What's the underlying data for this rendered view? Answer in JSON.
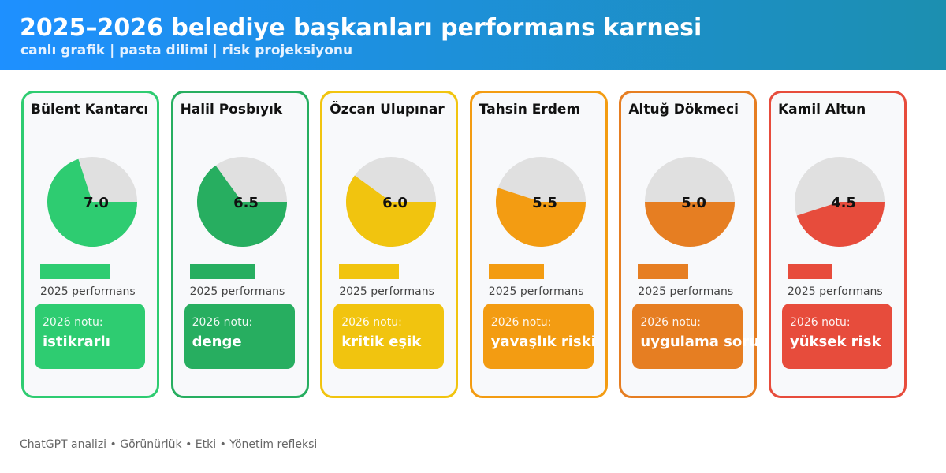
{
  "header": {
    "title": "2025–2026 belediye başkanları performans karnesi",
    "subtitle": "canlı grafik | pasta dilimi | risk projeksiyonu"
  },
  "chart_data": {
    "type": "pie",
    "scale_max": 10,
    "remainder_color": "#e0e0e0",
    "bar_label": "2025 performans",
    "note_label": "2026 notu:",
    "items": [
      {
        "name": "Bülent Kantarcı",
        "value": 7.0,
        "value_label": "7.0",
        "note": "istikrarlı",
        "color": "#2ecc71"
      },
      {
        "name": "Halil Posbıyık",
        "value": 6.5,
        "value_label": "6.5",
        "note": "denge",
        "color": "#27ae60"
      },
      {
        "name": "Özcan Ulupınar",
        "value": 6.0,
        "value_label": "6.0",
        "note": "kritik eşik",
        "color": "#f1c40f"
      },
      {
        "name": "Tahsin Erdem",
        "value": 5.5,
        "value_label": "5.5",
        "note": "yavaşlık riski",
        "color": "#f39c12"
      },
      {
        "name": "Altuğ Dökmeci",
        "value": 5.0,
        "value_label": "5.0",
        "note": "uygulama sorunu",
        "color": "#e67e22"
      },
      {
        "name": "Kamil Altun",
        "value": 4.5,
        "value_label": "4.5",
        "note": "yüksek risk",
        "color": "#e74c3c"
      }
    ]
  },
  "footer": {
    "text": "ChatGPT analizi • Görünürlük • Etki • Yönetim refleksi"
  }
}
